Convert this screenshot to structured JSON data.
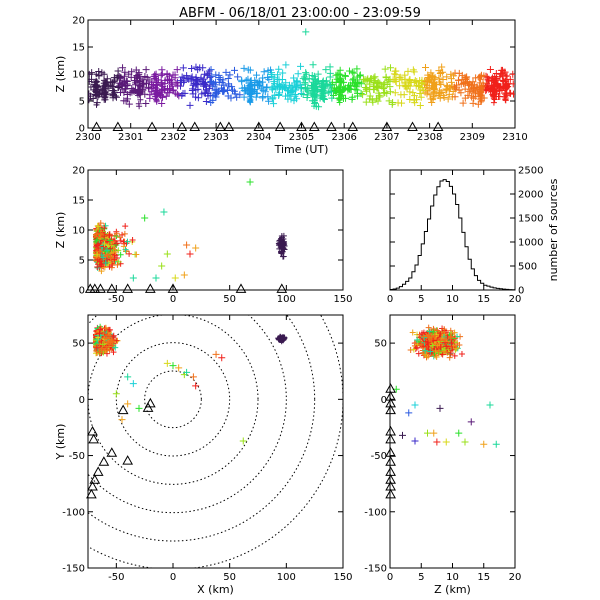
{
  "title": "ABFM - 06/18/01 23:00:00 - 23:09:59",
  "colors": {
    "triangle": "#000000",
    "axis": "#000000",
    "range_ring": "#000000",
    "cluster_east": "#3a1a50",
    "main_scale": [
      "#3a1a50",
      "#5a1a78",
      "#7a1aa0",
      "#3a2ac8",
      "#2a5ae0",
      "#1a9ae8",
      "#1ad0d8",
      "#1ad89a",
      "#2ae02a",
      "#9ae01a",
      "#d8d81a",
      "#f0a01a",
      "#f0701a",
      "#f0201a"
    ]
  },
  "chart_data": [
    {
      "id": "time_height",
      "type": "scatter",
      "marker": "plus",
      "xlabel": "Time (UT)",
      "ylabel": "Z (km)",
      "xlim": [
        2300,
        2310
      ],
      "ylim": [
        0,
        20
      ],
      "xticks": [
        "2300",
        "2301",
        "2302",
        "2303",
        "2304",
        "2305",
        "2306",
        "2307",
        "2308",
        "2309",
        "2310"
      ],
      "yticks": [
        "0",
        "5",
        "10",
        "15",
        "20"
      ],
      "color_by": "time",
      "ground_stations_x": [
        2300.2,
        2300.7,
        2301.5,
        2302.2,
        2302.5,
        2303.1,
        2303.3,
        2304.0,
        2304.5,
        2305.0,
        2305.3,
        2305.7,
        2306.2,
        2307.0,
        2307.6,
        2308.2
      ]
    },
    {
      "id": "x_height",
      "type": "scatter",
      "marker": "plus",
      "xlabel": "",
      "ylabel": "Z (km)",
      "xlim": [
        -75,
        150
      ],
      "ylim": [
        0,
        20
      ],
      "xticks": [
        "-50",
        "0",
        "50",
        "100",
        "150"
      ],
      "yticks": [
        "0",
        "5",
        "10",
        "15",
        "20"
      ],
      "ground_stations_x": [
        -73,
        -69,
        -64,
        -54,
        -40,
        -20,
        0,
        60,
        96
      ]
    },
    {
      "id": "height_histogram",
      "type": "bar",
      "style": "step",
      "xlabel": "",
      "ylabel": "number of sources",
      "xlim": [
        0,
        20
      ],
      "ylim": [
        0,
        2500
      ],
      "xticks": [
        "0",
        "5",
        "10",
        "15",
        "20"
      ],
      "yticks": [
        "0",
        "500",
        "1000",
        "1500",
        "2000",
        "2500"
      ],
      "bin_width": 0.5,
      "x": [
        0,
        0.5,
        1,
        1.5,
        2,
        2.5,
        3,
        3.5,
        4,
        4.5,
        5,
        5.5,
        6,
        6.5,
        7,
        7.5,
        8,
        8.5,
        9,
        9.5,
        10,
        10.5,
        11,
        11.5,
        12,
        12.5,
        13,
        13.5,
        14,
        14.5,
        15,
        15.5,
        16,
        16.5,
        17,
        17.5,
        18,
        18.5,
        19,
        19.5
      ],
      "values": [
        10,
        20,
        40,
        70,
        120,
        180,
        250,
        380,
        520,
        720,
        960,
        1220,
        1480,
        1750,
        1980,
        2150,
        2270,
        2300,
        2260,
        2160,
        2000,
        1780,
        1500,
        1200,
        900,
        640,
        440,
        300,
        200,
        140,
        100,
        80,
        60,
        45,
        35,
        25,
        18,
        12,
        8,
        5
      ]
    },
    {
      "id": "plan_view",
      "type": "scatter",
      "marker": "plus",
      "xlabel": "X (km)",
      "ylabel": "Y (km)",
      "xlim": [
        -75,
        150
      ],
      "ylim": [
        -150,
        75
      ],
      "xticks": [
        "-50",
        "0",
        "50",
        "100",
        "150"
      ],
      "yticks": [
        "-150",
        "-100",
        "-50",
        "0",
        "50"
      ],
      "range_rings_km": [
        25,
        50,
        75,
        100,
        125,
        150
      ],
      "ground_stations": [
        [
          -72,
          -85
        ],
        [
          -71,
          -78
        ],
        [
          -69,
          -72
        ],
        [
          -66,
          -65
        ],
        [
          -61,
          -56
        ],
        [
          -54,
          -48
        ],
        [
          -40,
          -55
        ],
        [
          -44,
          -10
        ],
        [
          -22,
          -8
        ],
        [
          -20,
          -4
        ],
        [
          -70,
          -36
        ],
        [
          -71,
          -29
        ]
      ]
    },
    {
      "id": "z_y",
      "type": "scatter",
      "marker": "plus",
      "xlabel": "Z (km)",
      "ylabel": "",
      "xlim": [
        0,
        20
      ],
      "ylim": [
        -150,
        75
      ],
      "xticks": [
        "0",
        "5",
        "10",
        "15",
        "20"
      ],
      "yticks": [
        "-150",
        "-100",
        "-50",
        "0",
        "50"
      ],
      "ground_stations_y": [
        -85,
        -78,
        -72,
        -65,
        -56,
        -48,
        -36,
        -29,
        -10,
        -4,
        2,
        9
      ]
    }
  ]
}
